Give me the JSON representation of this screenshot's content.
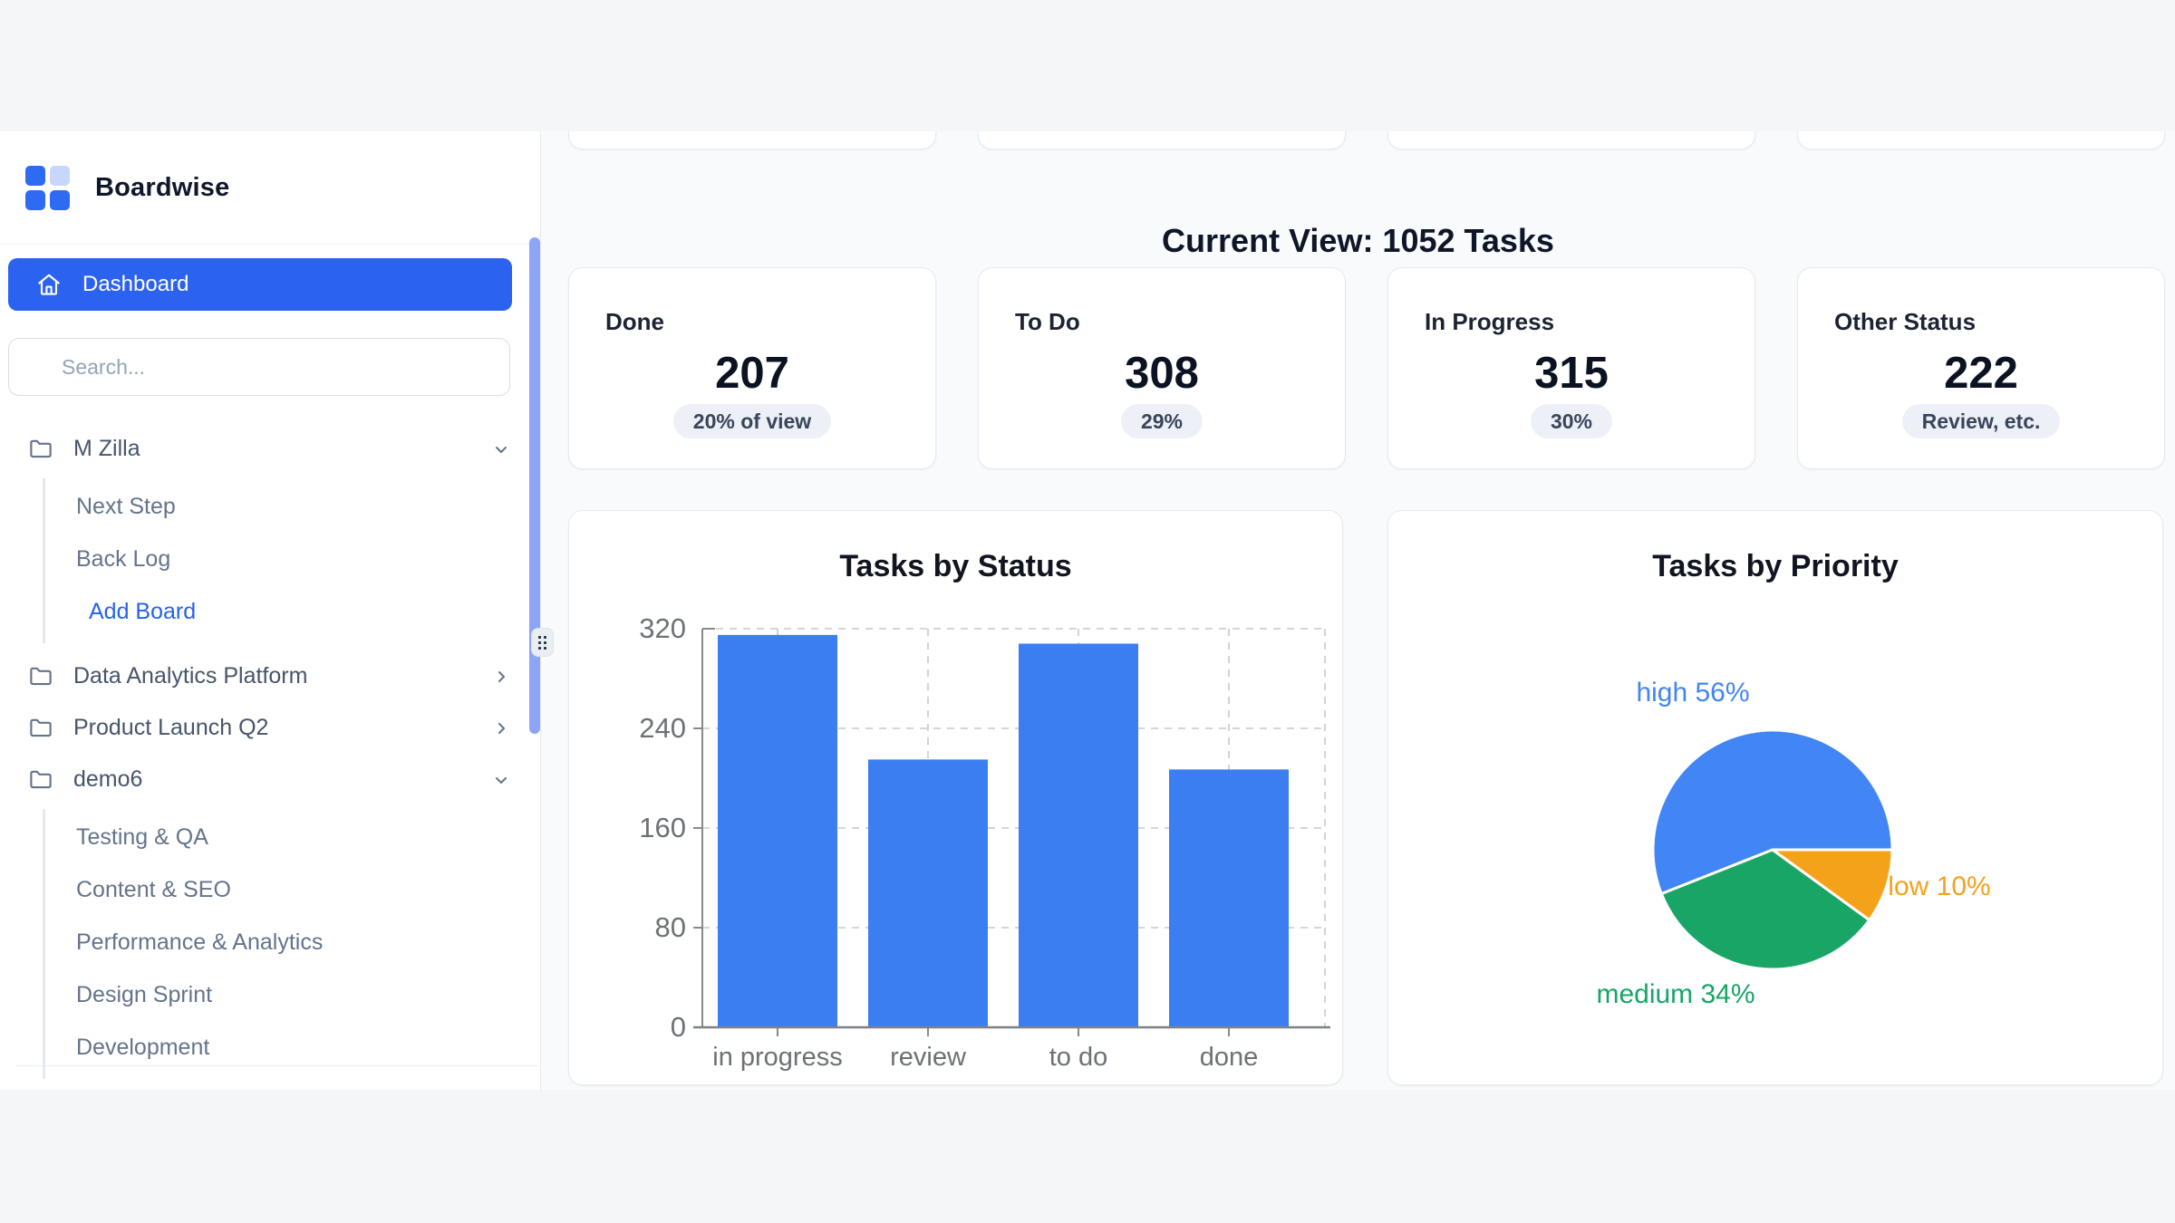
{
  "brand": {
    "name": "Boardwise",
    "accent_color": "#2b63f0",
    "logo_colors": [
      "#2f6bf2",
      "#c7d7fb",
      "#2f6bf2",
      "#2f6bf2"
    ]
  },
  "sidebar": {
    "dashboard_label": "Dashboard",
    "search_placeholder": "Search...",
    "nav": [
      {
        "label": "M Zilla",
        "type": "board",
        "state": "expanded",
        "children": [
          {
            "label": "Next Step",
            "type": "list"
          },
          {
            "label": "Back Log",
            "type": "list"
          },
          {
            "label": "Add Board",
            "type": "action"
          }
        ]
      },
      {
        "label": "Data Analytics Platform",
        "type": "board",
        "state": "collapsed",
        "children": []
      },
      {
        "label": "Product Launch Q2",
        "type": "board",
        "state": "collapsed",
        "children": []
      },
      {
        "label": "demo6",
        "type": "board",
        "state": "expanded",
        "children": [
          {
            "label": "Testing & QA",
            "type": "list"
          },
          {
            "label": "Content & SEO",
            "type": "list"
          },
          {
            "label": "Performance & Analytics",
            "type": "list"
          },
          {
            "label": "Design Sprint",
            "type": "list"
          },
          {
            "label": "Development",
            "type": "list"
          }
        ]
      }
    ]
  },
  "header": {
    "title": "Current View: 1052 Tasks",
    "total_tasks": 1052
  },
  "stats": {
    "cards": [
      {
        "label": "Done",
        "value": "207",
        "badge": "20% of view"
      },
      {
        "label": "To Do",
        "value": "308",
        "badge": "29%"
      },
      {
        "label": "In Progress",
        "value": "315",
        "badge": "30%"
      },
      {
        "label": "Other Status",
        "value": "222",
        "badge": "Review, etc."
      }
    ]
  },
  "chart_data": [
    {
      "type": "bar",
      "title": "Tasks by Status",
      "categories": [
        "in progress",
        "review",
        "to do",
        "done"
      ],
      "values": [
        315,
        215,
        308,
        207
      ],
      "xlabel": "",
      "ylabel": "",
      "ylim": [
        0,
        320
      ],
      "yticks": [
        0,
        80,
        160,
        240,
        320
      ],
      "bar_color": "#3b7ef2",
      "grid": "dashed",
      "legend": "none"
    },
    {
      "type": "pie",
      "title": "Tasks by Priority",
      "slices": [
        {
          "label": "high",
          "pct": 56,
          "color": "#4285f4"
        },
        {
          "label": "medium",
          "pct": 34,
          "color": "#18a566"
        },
        {
          "label": "low",
          "pct": 10,
          "color": "#f5a21b"
        }
      ],
      "legend": "labeled-outside"
    }
  ]
}
